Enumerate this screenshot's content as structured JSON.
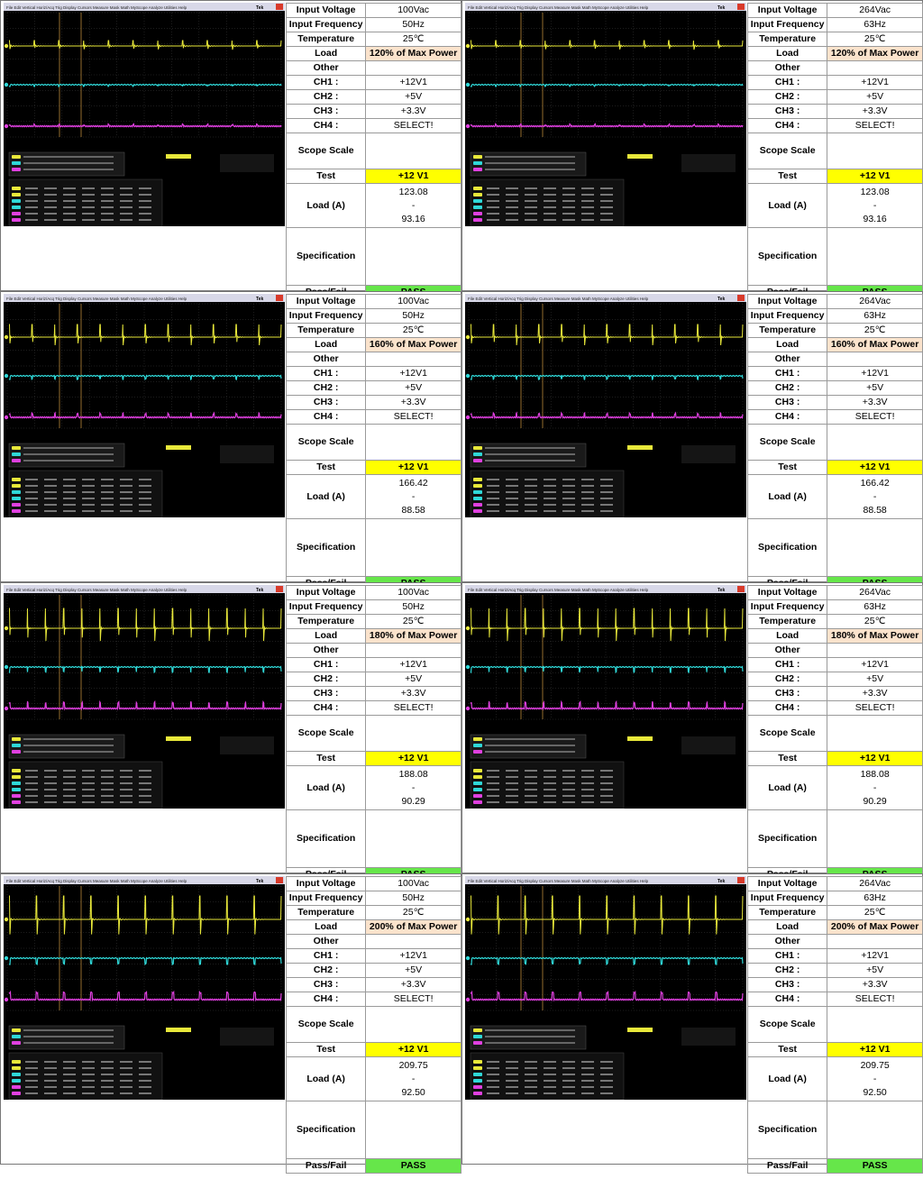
{
  "labels": {
    "input_voltage": "Input Voltage",
    "input_frequency": "Input Frequency",
    "temperature": "Temperature",
    "load": "Load",
    "other": "Other",
    "ch1": "CH1 :",
    "ch2": "CH2 :",
    "ch3": "CH3 :",
    "ch4": "CH4 :",
    "scope_scale": "Scope Scale",
    "test": "Test",
    "load_a": "Load (A)",
    "specification": "Specification",
    "pass_fail": "Pass/Fail"
  },
  "scope_menu": [
    "File",
    "Edit",
    "Vertical",
    "Horiz/Acq",
    "Trig",
    "Display",
    "Cursors",
    "Measure",
    "Mask",
    "Math",
    "MyScope",
    "Analyze",
    "Utilities",
    "Help"
  ],
  "scope_brand": "Tek",
  "colors": {
    "ch1": "#e8e83a",
    "ch2": "#2fd8d8",
    "ch3": "#e040e0",
    "load_bg": "#fbe3cc",
    "test_bg": "#ffff00",
    "pass_bg": "#66e64a"
  },
  "panels": [
    {
      "voltage": "100Vac",
      "frequency": "50Hz",
      "temperature": "25℃",
      "load": "120% of Max Power",
      "ch1": "+12V1",
      "ch2": "+5V",
      "ch3": "+3.3V",
      "ch4": "SELECT!",
      "test": "+12 V1",
      "load_max": "123.08",
      "load_sep": "-",
      "load_min": "93.16",
      "result": "PASS"
    },
    {
      "voltage": "264Vac",
      "frequency": "63Hz",
      "temperature": "25℃",
      "load": "120% of Max Power",
      "ch1": "+12V1",
      "ch2": "+5V",
      "ch3": "+3.3V",
      "ch4": "SELECT!",
      "test": "+12 V1",
      "load_max": "123.08",
      "load_sep": "-",
      "load_min": "93.16",
      "result": "PASS"
    },
    {
      "voltage": "100Vac",
      "frequency": "50Hz",
      "temperature": "25℃",
      "load": "160% of Max Power",
      "ch1": "+12V1",
      "ch2": "+5V",
      "ch3": "+3.3V",
      "ch4": "SELECT!",
      "test": "+12 V1",
      "load_max": "166.42",
      "load_sep": "-",
      "load_min": "88.58",
      "result": "PASS"
    },
    {
      "voltage": "264Vac",
      "frequency": "63Hz",
      "temperature": "25℃",
      "load": "160% of Max Power",
      "ch1": "+12V1",
      "ch2": "+5V",
      "ch3": "+3.3V",
      "ch4": "SELECT!",
      "test": "+12 V1",
      "load_max": "166.42",
      "load_sep": "-",
      "load_min": "88.58",
      "result": "PASS"
    },
    {
      "voltage": "100Vac",
      "frequency": "50Hz",
      "temperature": "25℃",
      "load": "180% of Max Power",
      "ch1": "+12V1",
      "ch2": "+5V",
      "ch3": "+3.3V",
      "ch4": "SELECT!",
      "test": "+12 V1",
      "load_max": "188.08",
      "load_sep": "-",
      "load_min": "90.29",
      "result": "PASS"
    },
    {
      "voltage": "264Vac",
      "frequency": "63Hz",
      "temperature": "25℃",
      "load": "180% of Max Power",
      "ch1": "+12V1",
      "ch2": "+5V",
      "ch3": "+3.3V",
      "ch4": "SELECT!",
      "test": "+12 V1",
      "load_max": "188.08",
      "load_sep": "-",
      "load_min": "90.29",
      "result": "PASS"
    },
    {
      "voltage": "100Vac",
      "frequency": "50Hz",
      "temperature": "25℃",
      "load": "200% of Max Power",
      "ch1": "+12V1",
      "ch2": "+5V",
      "ch3": "+3.3V",
      "ch4": "SELECT!",
      "test": "+12 V1",
      "load_max": "209.75",
      "load_sep": "-",
      "load_min": "92.50",
      "result": "PASS"
    },
    {
      "voltage": "264Vac",
      "frequency": "63Hz",
      "temperature": "25℃",
      "load": "200% of Max Power",
      "ch1": "+12V1",
      "ch2": "+5V",
      "ch3": "+3.3V",
      "ch4": "SELECT!",
      "test": "+12 V1",
      "load_max": "209.75",
      "load_sep": "-",
      "load_min": "92.50",
      "result": "PASS"
    }
  ]
}
